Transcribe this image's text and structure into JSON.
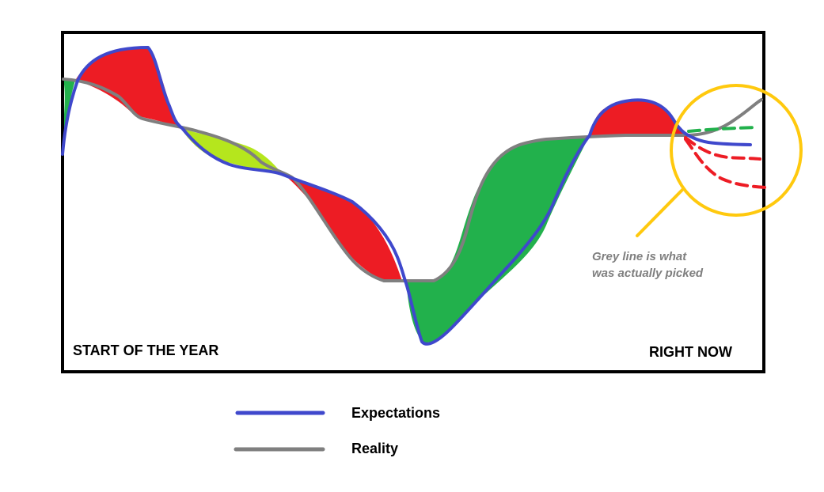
{
  "diagram": {
    "start_label": "START OF THE YEAR",
    "end_label": "RIGHT NOW",
    "annotation_line1": "Grey line is what",
    "annotation_line2": "was actually picked"
  },
  "legend": {
    "items": [
      {
        "label": "Expectations",
        "color": "#3f48cc"
      },
      {
        "label": "Reality",
        "color": "#7f7f7f"
      }
    ]
  },
  "colors": {
    "expectations": "#3f48cc",
    "reality": "#7f7f7f",
    "above_fill": "#ed1c24",
    "below_fill": "#22b14c",
    "light_fill": "#b5e61d",
    "highlight_circle": "#ffc90e",
    "frame": "#000000"
  }
}
